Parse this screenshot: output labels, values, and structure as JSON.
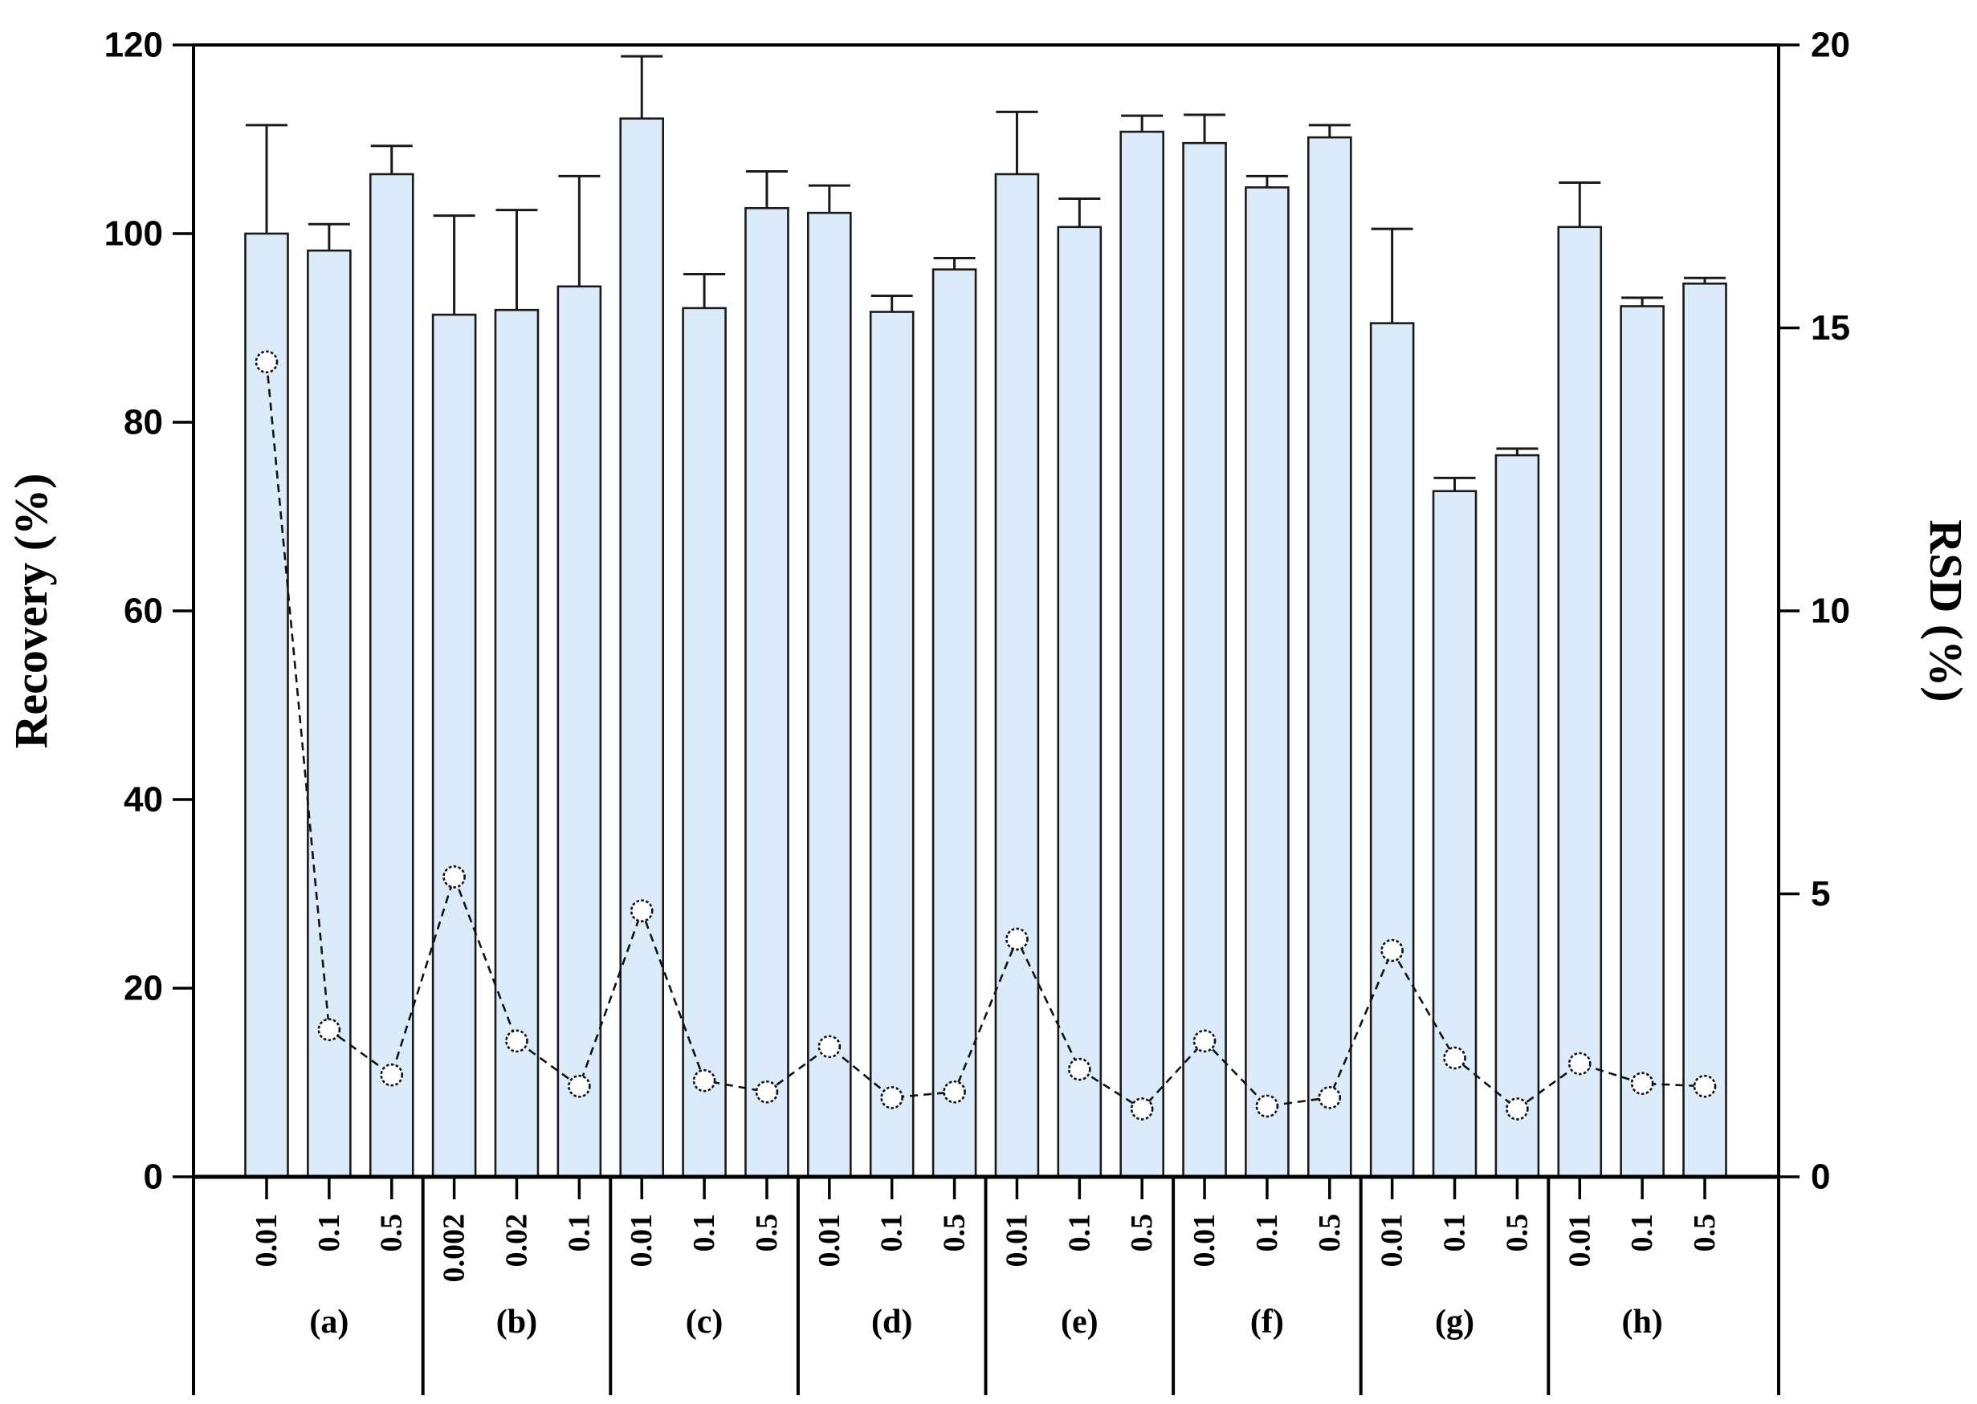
{
  "chart_data": {
    "type": "bar",
    "subtype": "grouped bars with error bars + overlaid line series on secondary axis",
    "title": "",
    "xlabel": "",
    "ylabel_left": "Recovery (%)",
    "ylabel_right": "RSD (%)",
    "ylim_left": [
      0,
      120
    ],
    "ylim_right": [
      0,
      20
    ],
    "yticks_left": [
      0,
      20,
      40,
      60,
      80,
      100,
      120
    ],
    "yticks_right": [
      0,
      5,
      10,
      15,
      20
    ],
    "grid": "off",
    "legend": "none",
    "bar_fill": "#dcebfa",
    "bar_stroke": "#1a1a1a",
    "line_color": "#111111",
    "marker": "open-circle",
    "groups": [
      {
        "label": "(a)",
        "categories": [
          "0.01",
          "0.1",
          "0.5"
        ]
      },
      {
        "label": "(b)",
        "categories": [
          "0.002",
          "0.02",
          "0.1"
        ]
      },
      {
        "label": "(c)",
        "categories": [
          "0.01",
          "0.1",
          "0.5"
        ]
      },
      {
        "label": "(d)",
        "categories": [
          "0.01",
          "0.1",
          "0.5"
        ]
      },
      {
        "label": "(e)",
        "categories": [
          "0.01",
          "0.1",
          "0.5"
        ]
      },
      {
        "label": "(f)",
        "categories": [
          "0.01",
          "0.1",
          "0.5"
        ]
      },
      {
        "label": "(g)",
        "categories": [
          "0.01",
          "0.1",
          "0.5"
        ]
      },
      {
        "label": "(h)",
        "categories": [
          "0.01",
          "0.1",
          "0.5"
        ]
      }
    ],
    "series": [
      {
        "name": "Recovery (%)",
        "axis": "left",
        "render": "bar",
        "values": [
          100.0,
          98.2,
          106.3,
          91.4,
          91.9,
          94.4,
          112.2,
          92.1,
          102.7,
          102.2,
          91.7,
          96.2,
          106.3,
          100.7,
          110.8,
          109.6,
          104.9,
          110.2,
          90.5,
          72.7,
          76.5,
          100.7,
          92.3,
          94.7
        ],
        "errors_plus": [
          11.5,
          2.8,
          3.0,
          10.5,
          10.6,
          11.7,
          6.6,
          3.6,
          3.9,
          2.9,
          1.7,
          1.2,
          6.6,
          3.0,
          1.7,
          3.0,
          1.2,
          1.3,
          10.0,
          1.4,
          0.7,
          4.7,
          0.9,
          0.6
        ]
      },
      {
        "name": "RSD (%)",
        "axis": "right",
        "render": "line",
        "values": [
          14.4,
          2.6,
          1.8,
          5.3,
          2.4,
          1.6,
          4.7,
          1.7,
          1.5,
          2.3,
          1.4,
          1.5,
          4.2,
          1.9,
          1.2,
          2.4,
          1.25,
          1.4,
          4.0,
          2.1,
          1.2,
          2.0,
          1.65,
          1.6
        ]
      }
    ]
  },
  "axes_text": {
    "left_title": "Recovery (%)",
    "right_title": "RSD (%)"
  }
}
